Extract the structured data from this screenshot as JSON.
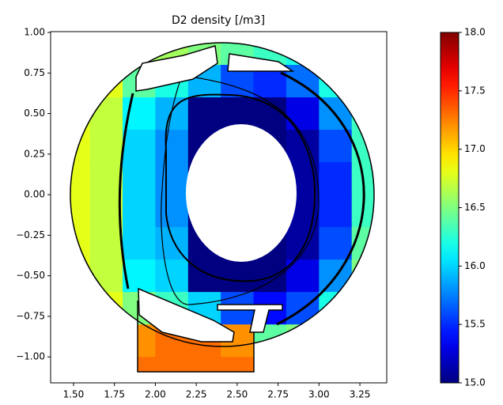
{
  "chart_data": {
    "type": "heatmap",
    "title": "D2 density [/m3]",
    "colormap": "jet",
    "x": [
      1.5,
      1.7,
      1.9,
      2.1,
      2.3,
      2.5,
      2.7,
      2.9,
      3.1,
      3.3
    ],
    "y": [
      0.9,
      0.7,
      0.5,
      0.3,
      0.1,
      -0.1,
      -0.3,
      -0.5,
      -0.7,
      -0.9,
      -1.1
    ],
    "z": [
      [
        null,
        null,
        16.6,
        16.6,
        16.5,
        16.4,
        16.3,
        16.2,
        null,
        null
      ],
      [
        null,
        16.8,
        16.4,
        16.2,
        15.9,
        15.6,
        15.5,
        15.7,
        16.2,
        null
      ],
      [
        16.8,
        16.7,
        16.1,
        15.9,
        15.0,
        15.0,
        15.0,
        15.3,
        15.8,
        16.3
      ],
      [
        16.8,
        16.7,
        16.0,
        15.8,
        15.0,
        15.0,
        15.0,
        15.1,
        15.6,
        16.3
      ],
      [
        16.8,
        16.7,
        16.0,
        15.8,
        15.0,
        15.0,
        15.0,
        15.1,
        15.5,
        16.3
      ],
      [
        16.8,
        16.7,
        16.0,
        15.8,
        15.0,
        15.0,
        15.0,
        15.1,
        15.5,
        16.3
      ],
      [
        16.8,
        16.7,
        16.0,
        15.9,
        15.0,
        15.0,
        15.0,
        15.1,
        15.6,
        16.4
      ],
      [
        16.8,
        16.7,
        16.1,
        16.0,
        15.0,
        15.0,
        15.0,
        15.3,
        15.8,
        16.5
      ],
      [
        null,
        16.8,
        16.5,
        16.3,
        16.0,
        15.6,
        15.4,
        15.6,
        16.2,
        16.6
      ],
      [
        null,
        null,
        17.2,
        17.3,
        17.3,
        17.2,
        16.4,
        16.5,
        16.6,
        null
      ],
      [
        null,
        null,
        17.3,
        17.3,
        17.3,
        17.3,
        null,
        null,
        null,
        null
      ]
    ],
    "xlim": [
      1.36,
      3.414
    ],
    "ylim": [
      -1.16,
      1.005
    ],
    "xticks": [
      {
        "value": 1.5,
        "label": "1.50"
      },
      {
        "value": 1.75,
        "label": "1.75"
      },
      {
        "value": 2.0,
        "label": "2.00"
      },
      {
        "value": 2.25,
        "label": "2.25"
      },
      {
        "value": 2.5,
        "label": "2.50"
      },
      {
        "value": 2.75,
        "label": "2.75"
      },
      {
        "value": 3.0,
        "label": "3.00"
      },
      {
        "value": 3.25,
        "label": "3.25"
      }
    ],
    "yticks": [
      {
        "value": 1.0,
        "label": "1.00"
      },
      {
        "value": 0.75,
        "label": "0.75"
      },
      {
        "value": 0.5,
        "label": "0.50"
      },
      {
        "value": 0.25,
        "label": "0.25"
      },
      {
        "value": 0.0,
        "label": "0.00"
      },
      {
        "value": -0.25,
        "label": "−0.25"
      },
      {
        "value": -0.5,
        "label": "−0.50"
      },
      {
        "value": -0.75,
        "label": "−0.75"
      },
      {
        "value": -1.0,
        "label": "−1.00"
      }
    ],
    "clim": [
      15,
      18
    ],
    "colorbar_ticks": [
      {
        "value": 15,
        "label": "15.0"
      },
      {
        "value": 15.5,
        "label": "15.5"
      },
      {
        "value": 16,
        "label": "16.0"
      },
      {
        "value": 16.5,
        "label": "16.5"
      },
      {
        "value": 17,
        "label": "17.0"
      },
      {
        "value": 17.5,
        "label": "17.5"
      },
      {
        "value": 18,
        "label": "18.0"
      }
    ]
  }
}
